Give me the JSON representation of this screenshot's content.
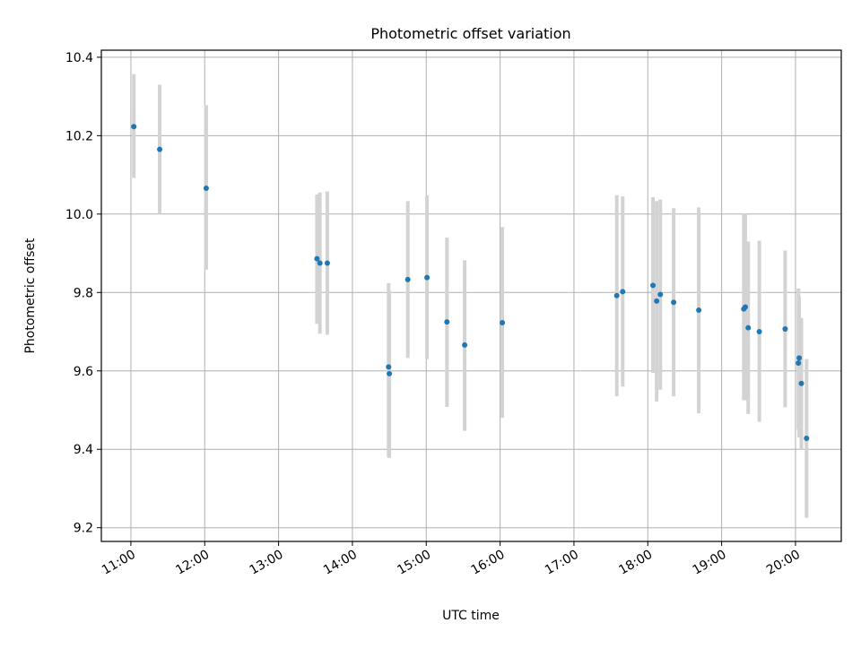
{
  "chart_data": {
    "type": "scatter",
    "title": "Photometric offset variation",
    "xlabel": "UTC time",
    "ylabel": "Photometric offset",
    "x_unit": "hours UTC",
    "xlim": [
      10.6,
      20.62
    ],
    "ylim": [
      9.165,
      10.418
    ],
    "x_ticks": [
      {
        "value": 11,
        "label": "11:00"
      },
      {
        "value": 12,
        "label": "12:00"
      },
      {
        "value": 13,
        "label": "13:00"
      },
      {
        "value": 14,
        "label": "14:00"
      },
      {
        "value": 15,
        "label": "15:00"
      },
      {
        "value": 16,
        "label": "16:00"
      },
      {
        "value": 17,
        "label": "17:00"
      },
      {
        "value": 18,
        "label": "18:00"
      },
      {
        "value": 19,
        "label": "19:00"
      },
      {
        "value": 20,
        "label": "20:00"
      }
    ],
    "y_ticks": [
      {
        "value": 9.2,
        "label": "9.2"
      },
      {
        "value": 9.4,
        "label": "9.4"
      },
      {
        "value": 9.6,
        "label": "9.6"
      },
      {
        "value": 9.8,
        "label": "9.8"
      },
      {
        "value": 10.0,
        "label": "10.0"
      },
      {
        "value": 10.2,
        "label": "10.2"
      },
      {
        "value": 10.4,
        "label": "10.4"
      }
    ],
    "grid": true,
    "colors": {
      "point": "#1f77b4",
      "errorbar": "#d3d3d3",
      "grid": "#b0b0b0"
    },
    "points": [
      {
        "x": 11.04,
        "y": 10.223,
        "low": 10.092,
        "high": 10.357
      },
      {
        "x": 11.39,
        "y": 10.165,
        "low": 10.0,
        "high": 10.33
      },
      {
        "x": 12.02,
        "y": 10.066,
        "low": 9.858,
        "high": 10.278
      },
      {
        "x": 13.52,
        "y": 9.886,
        "low": 9.72,
        "high": 10.05
      },
      {
        "x": 13.56,
        "y": 9.875,
        "low": 9.695,
        "high": 10.055
      },
      {
        "x": 13.66,
        "y": 9.875,
        "low": 9.692,
        "high": 10.058
      },
      {
        "x": 14.49,
        "y": 9.61,
        "low": 9.38,
        "high": 9.824
      },
      {
        "x": 14.5,
        "y": 9.593,
        "low": 9.378,
        "high": 9.805
      },
      {
        "x": 14.75,
        "y": 9.833,
        "low": 9.633,
        "high": 10.033
      },
      {
        "x": 15.01,
        "y": 9.838,
        "low": 9.63,
        "high": 10.048
      },
      {
        "x": 15.28,
        "y": 9.725,
        "low": 9.508,
        "high": 9.94
      },
      {
        "x": 15.52,
        "y": 9.666,
        "low": 9.447,
        "high": 9.882
      },
      {
        "x": 16.03,
        "y": 9.723,
        "low": 9.48,
        "high": 9.967
      },
      {
        "x": 17.58,
        "y": 9.792,
        "low": 9.535,
        "high": 10.048
      },
      {
        "x": 17.66,
        "y": 9.802,
        "low": 9.56,
        "high": 10.045
      },
      {
        "x": 18.07,
        "y": 9.818,
        "low": 9.595,
        "high": 10.043
      },
      {
        "x": 18.12,
        "y": 9.778,
        "low": 9.522,
        "high": 10.033
      },
      {
        "x": 18.17,
        "y": 9.795,
        "low": 9.552,
        "high": 10.037
      },
      {
        "x": 18.35,
        "y": 9.775,
        "low": 9.535,
        "high": 10.015
      },
      {
        "x": 18.69,
        "y": 9.755,
        "low": 9.492,
        "high": 10.017
      },
      {
        "x": 19.3,
        "y": 9.758,
        "low": 9.525,
        "high": 10.002
      },
      {
        "x": 19.32,
        "y": 9.763,
        "low": 9.525,
        "high": 10.0
      },
      {
        "x": 19.36,
        "y": 9.71,
        "low": 9.49,
        "high": 9.93
      },
      {
        "x": 19.51,
        "y": 9.7,
        "low": 9.47,
        "high": 9.932
      },
      {
        "x": 19.86,
        "y": 9.707,
        "low": 9.507,
        "high": 9.907
      },
      {
        "x": 20.04,
        "y": 9.62,
        "low": 9.45,
        "high": 9.81
      },
      {
        "x": 20.05,
        "y": 9.633,
        "low": 9.43,
        "high": 9.79
      },
      {
        "x": 20.08,
        "y": 9.568,
        "low": 9.4,
        "high": 9.735
      },
      {
        "x": 20.15,
        "y": 9.428,
        "low": 9.225,
        "high": 9.63
      }
    ]
  }
}
